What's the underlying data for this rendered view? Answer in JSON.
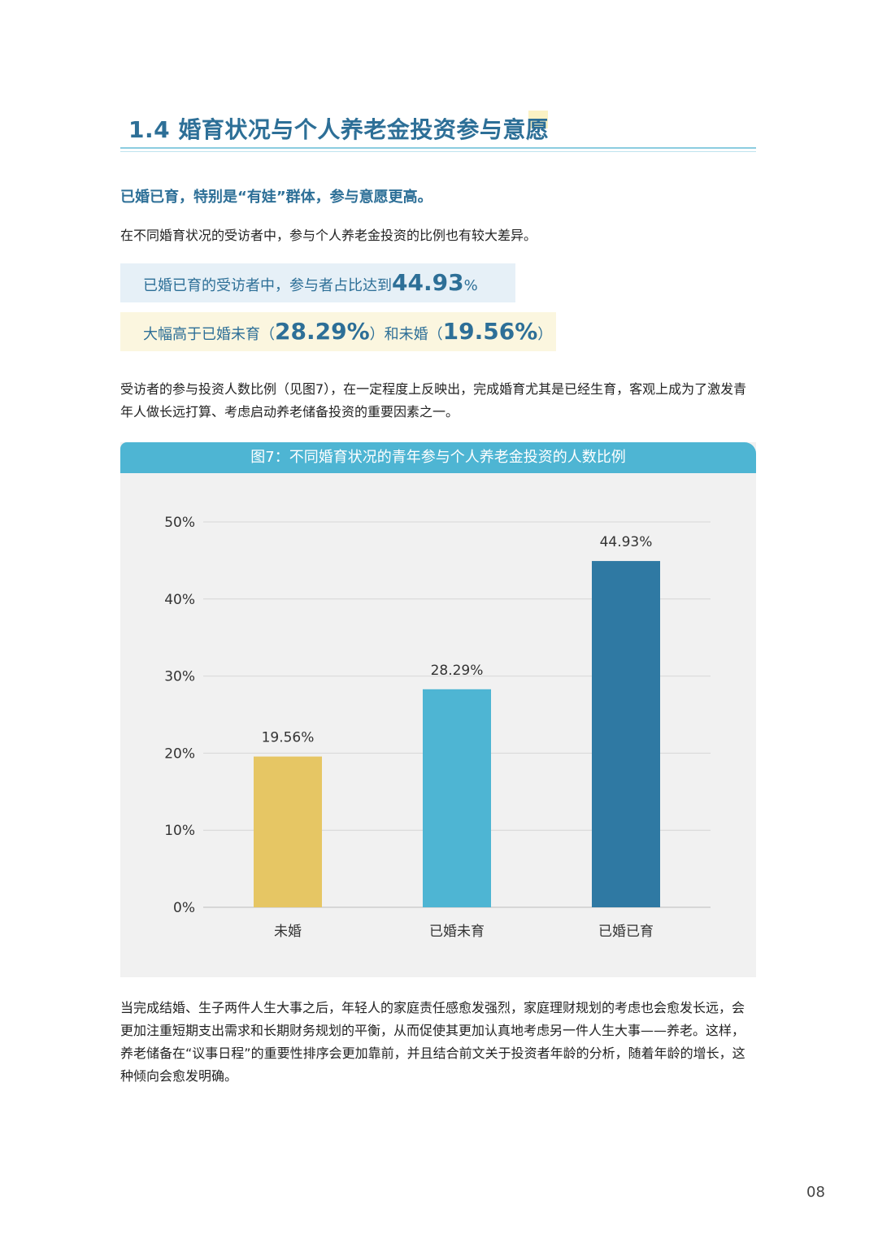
{
  "section": {
    "title": "1.4 婚育状况与个人养老金投资参与意愿",
    "subheading": "已婚已育，特别是“有娃”群体，参与意愿更高。",
    "intro": "在不同婚育状况的受访者中，参与个人养老金投资的比例也有较大差异。"
  },
  "highlights": {
    "line1_prefix": "已婚已育的受访者中，参与者占比达到",
    "line1_value": "44.93",
    "line1_unit": "%",
    "line2_prefix": "大幅高于已婚未育（",
    "line2_value1": "28.29%",
    "line2_middle": "）和未婚（",
    "line2_value2": "19.56%",
    "line2_suffix": "）"
  },
  "body": {
    "para1": "受访者的参与投资人数比例（见图7），在一定程度上反映出，完成婚育尤其是已经生育，客观上成为了激发青年人做长远打算、考虑启动养老储备投资的重要因素之一。",
    "para2": "当完成结婚、生子两件人生大事之后，年轻人的家庭责任感愈发强烈，家庭理财规划的考虑也会愈发长远，会更加注重短期支出需求和长期财务规划的平衡，从而促使其更加认真地考虑另一件人生大事——养老。这样，养老储备在“议事日程”的重要性排序会更加靠前，并且结合前文关于投资者年龄的分析，随着年龄的增长，这种倾向会愈发明确。"
  },
  "chart_data": {
    "type": "bar",
    "title": "图7：不同婚育状况的青年参与个人养老金投资的人数比例",
    "categories": [
      "未婚",
      "已婚未育",
      "已婚已育"
    ],
    "values": [
      19.56,
      28.29,
      44.93
    ],
    "value_labels": [
      "19.56%",
      "28.29%",
      "44.93%"
    ],
    "colors": [
      "#e6c664",
      "#4eb5d3",
      "#2f79a3"
    ],
    "yticks": [
      "0%",
      "10%",
      "20%",
      "30%",
      "40%",
      "50%"
    ],
    "ylim": [
      0,
      50
    ],
    "xlabel": "",
    "ylabel": "",
    "grid": true
  },
  "page_number": "08"
}
